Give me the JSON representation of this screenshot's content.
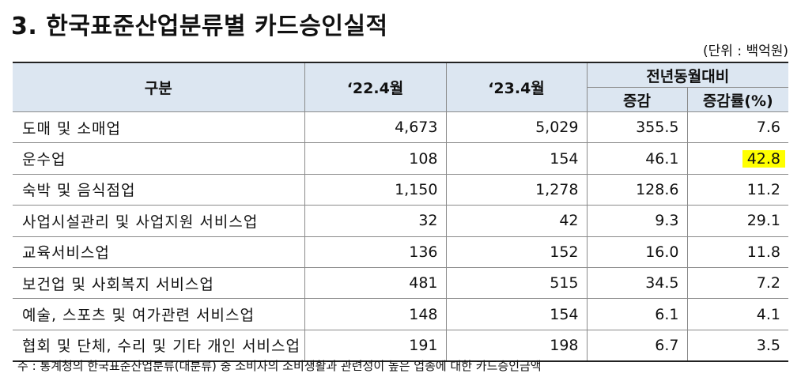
{
  "title": "3. 한국표준산업분류별 카드승인실적",
  "unit": "(단위 : 백억원)",
  "table": {
    "header": {
      "category": "구분",
      "col_prev": "‘22.4월",
      "col_curr": "‘23.4월",
      "group": "전년동월대비",
      "col_diff": "증감",
      "col_rate": "증감률(%)"
    },
    "rows": [
      {
        "label": "도매 및 소매업",
        "prev": "4,673",
        "curr": "5,029",
        "diff": "355.5",
        "rate": "7.6"
      },
      {
        "label": "운수업",
        "prev": "108",
        "curr": "154",
        "diff": "46.1",
        "rate": "42.8"
      },
      {
        "label": "숙박 및 음식점업",
        "prev": "1,150",
        "curr": "1,278",
        "diff": "128.6",
        "rate": "11.2"
      },
      {
        "label": "사업시설관리 및 사업지원 서비스업",
        "prev": "32",
        "curr": "42",
        "diff": "9.3",
        "rate": "29.1"
      },
      {
        "label": "교육서비스업",
        "prev": "136",
        "curr": "152",
        "diff": "16.0",
        "rate": "11.8"
      },
      {
        "label": "보건업 및 사회복지 서비스업",
        "prev": "481",
        "curr": "515",
        "diff": "34.5",
        "rate": "7.2"
      },
      {
        "label": "예술, 스포츠 및 여가관련 서비스업",
        "prev": "148",
        "curr": "154",
        "diff": "6.1",
        "rate": "4.1"
      },
      {
        "label": "협회 및 단체, 수리 및 기타 개인 서비스업",
        "prev": "191",
        "curr": "198",
        "diff": "6.7",
        "rate": "3.5"
      }
    ]
  },
  "highlight_color": "#ffff00",
  "header_bg_color": "#dce6f1",
  "note": "주 : 통계청의 한국표준산업분류(대분류) 중 소비자의 소비생활과 관련성이 높은 업종에 대한 카드승인금액"
}
